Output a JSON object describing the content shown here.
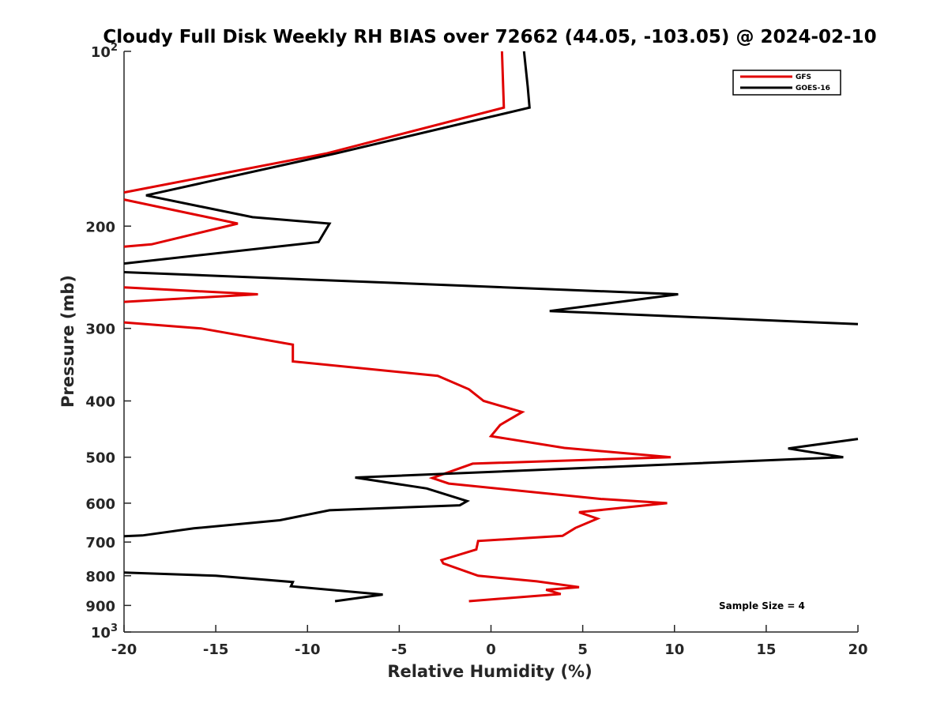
{
  "chart_data": {
    "type": "line",
    "title": "Cloudy Full Disk Weekly RH BIAS over 72662 (44.05, -103.05) @ 2024-02-10",
    "xlabel": "Relative Humidity (%)",
    "ylabel": "Pressure (mb)",
    "xlim": [
      -20,
      20
    ],
    "ylim": [
      100,
      1000
    ],
    "yscale": "log",
    "y_reversed": true,
    "grid": false,
    "legend_position": "top-right",
    "xticks": [
      "-20",
      "-15",
      "-10",
      "-5",
      "0",
      "5",
      "10",
      "15",
      "20"
    ],
    "yticks": [
      {
        "value": 100,
        "base": "10",
        "exp": "2"
      },
      {
        "value": 200,
        "label": "200"
      },
      {
        "value": 300,
        "label": "300"
      },
      {
        "value": 400,
        "label": "400"
      },
      {
        "value": 500,
        "label": "500"
      },
      {
        "value": 600,
        "label": "600"
      },
      {
        "value": 700,
        "label": "700"
      },
      {
        "value": 800,
        "label": "800"
      },
      {
        "value": 900,
        "label": "900"
      },
      {
        "value": 1000,
        "base": "10",
        "exp": "3"
      }
    ],
    "annotation": "Sample Size = 4",
    "series": [
      {
        "name": "GFS",
        "color": "#e00000",
        "segments": [
          [
            [
              0.6,
              100
            ],
            [
              0.7,
              125
            ],
            [
              -9.0,
              150
            ],
            [
              -20.0,
              175
            ]
          ],
          [
            [
              -20.0,
              180
            ],
            [
              -13.8,
              198
            ],
            [
              -18.5,
              215
            ],
            [
              -20.0,
              217
            ]
          ],
          [
            [
              -20.0,
              255
            ],
            [
              -12.7,
              262
            ],
            [
              -20.0,
              270
            ]
          ],
          [
            [
              -20.0,
              293
            ],
            [
              -15.8,
              300
            ],
            [
              -10.8,
              320
            ],
            [
              -10.8,
              342
            ],
            [
              -2.9,
              362
            ],
            [
              -1.2,
              382
            ],
            [
              -0.4,
              400
            ],
            [
              1.7,
              418
            ],
            [
              0.5,
              440
            ],
            [
              0.0,
              460
            ],
            [
              4.0,
              482
            ],
            [
              9.8,
              500
            ],
            [
              -1.0,
              513
            ],
            [
              -3.2,
              543
            ],
            [
              -2.3,
              555
            ],
            [
              6.0,
              590
            ],
            [
              9.6,
              600
            ],
            [
              4.8,
              622
            ],
            [
              5.8,
              638
            ],
            [
              4.6,
              662
            ],
            [
              3.9,
              683
            ],
            [
              -0.7,
              697
            ],
            [
              -0.8,
              721
            ],
            [
              -2.7,
              752
            ],
            [
              -2.6,
              762
            ],
            [
              -0.7,
              800
            ],
            [
              2.5,
              818
            ],
            [
              4.8,
              837
            ],
            [
              3.0,
              846
            ],
            [
              3.8,
              860
            ],
            [
              -1.2,
              885
            ]
          ]
        ]
      },
      {
        "name": "GOES-16",
        "color": "#000000",
        "segments": [
          [
            [
              1.8,
              100
            ],
            [
              2.0,
              115
            ],
            [
              2.1,
              125
            ],
            [
              -8.5,
              150
            ],
            [
              -18.8,
              177
            ],
            [
              -13.0,
              193
            ],
            [
              -8.8,
              198
            ],
            [
              -9.4,
              213
            ],
            [
              -20.0,
              232
            ]
          ],
          [
            [
              -20.0,
              240
            ],
            [
              10.2,
              262
            ],
            [
              3.2,
              280
            ],
            [
              20.0,
              295
            ]
          ],
          [
            [
              20.0,
              465
            ],
            [
              16.2,
              483
            ],
            [
              19.2,
              500
            ],
            [
              -7.4,
              542
            ],
            [
              -3.5,
              566
            ],
            [
              -1.3,
              595
            ],
            [
              -1.7,
              605
            ],
            [
              -8.8,
              617
            ],
            [
              -11.5,
              642
            ],
            [
              -16.2,
              663
            ],
            [
              -19.0,
              682
            ],
            [
              -20.0,
              684
            ]
          ],
          [
            [
              -20.0,
              790
            ],
            [
              -15.0,
              800
            ],
            [
              -10.8,
              820
            ],
            [
              -10.9,
              834
            ],
            [
              -5.9,
              862
            ],
            [
              -8.5,
              885
            ]
          ]
        ]
      }
    ]
  }
}
